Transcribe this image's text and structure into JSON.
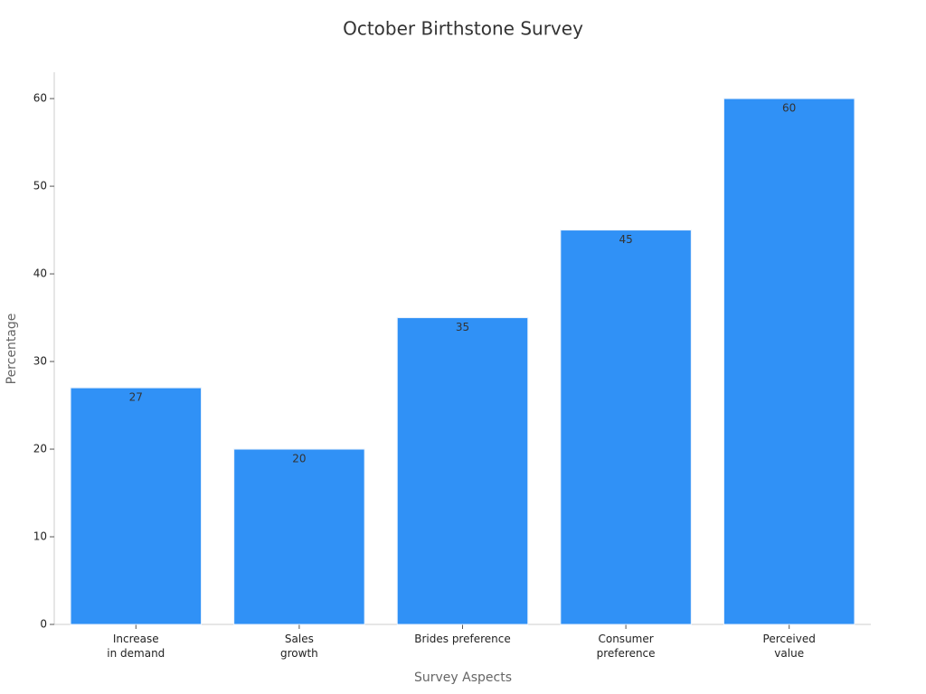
{
  "chart_data": {
    "type": "bar",
    "title": "October Birthstone Survey",
    "x_label": "Survey Aspects",
    "y_label": "Percentage",
    "categories": [
      "Increase\nin demand",
      "Sales\ngrowth",
      "Brides preference",
      "Consumer\npreference",
      "Perceived\nvalue"
    ],
    "values": [
      27,
      20,
      35,
      45,
      60
    ],
    "color": "#3091f6",
    "ylim": [
      0,
      63
    ],
    "yticks": [
      0,
      10,
      20,
      30,
      40,
      50,
      60
    ],
    "grid": false
  }
}
